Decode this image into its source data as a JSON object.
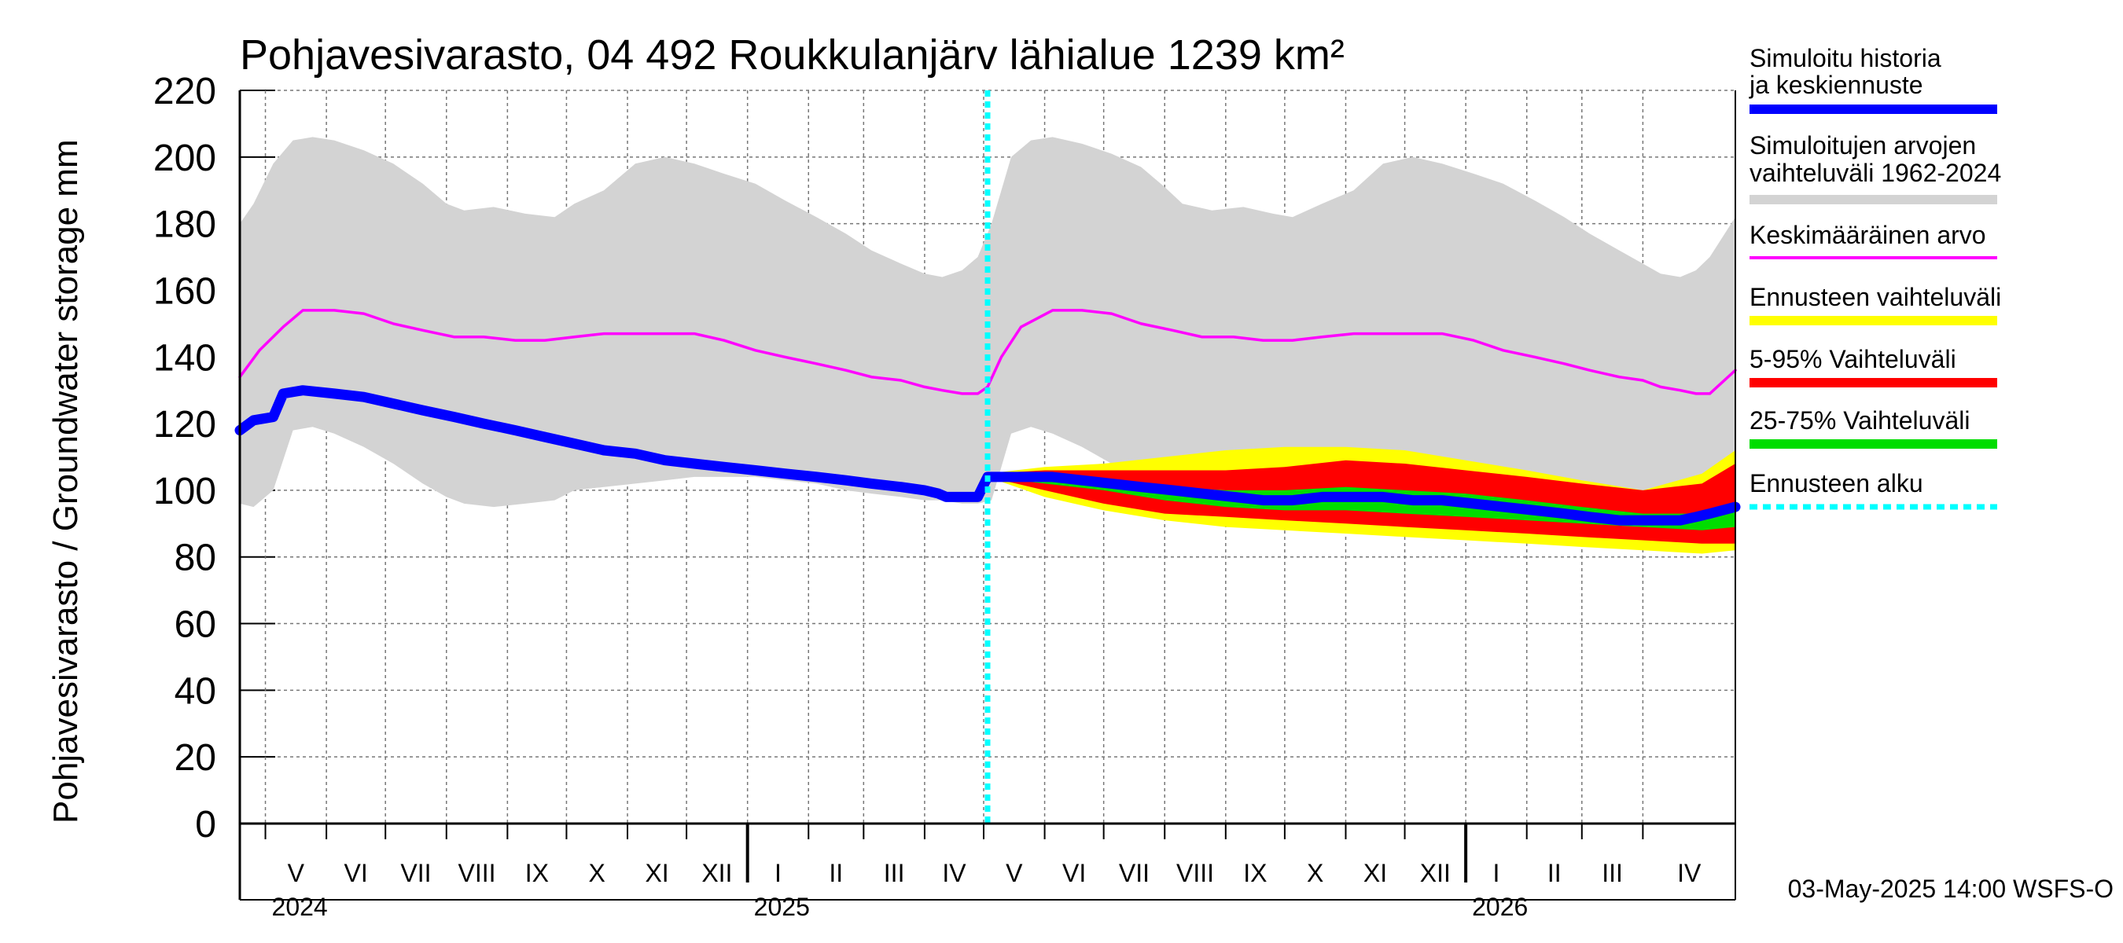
{
  "chart_data": {
    "type": "area",
    "title": "Pohjavesivarasto, 04 492 Roukkulanjärv lähialue 1239 km²",
    "ylabel": "Pohjavesivarasto / Groundwater storage   mm",
    "ylim": [
      0,
      220
    ],
    "yticks": [
      0,
      20,
      40,
      60,
      80,
      100,
      120,
      140,
      160,
      180,
      200,
      220
    ],
    "xlim": [
      "2024-04-18",
      "2026-05-18"
    ],
    "grid": true,
    "months": [
      {
        "label": "V",
        "date": "2024-05-01"
      },
      {
        "label": "VI",
        "date": "2024-06-01"
      },
      {
        "label": "VII",
        "date": "2024-07-01"
      },
      {
        "label": "VIII",
        "date": "2024-08-01"
      },
      {
        "label": "IX",
        "date": "2024-09-01"
      },
      {
        "label": "X",
        "date": "2024-10-01"
      },
      {
        "label": "XI",
        "date": "2024-11-01"
      },
      {
        "label": "XII",
        "date": "2024-12-01"
      },
      {
        "label": "I",
        "date": "2025-01-01"
      },
      {
        "label": "II",
        "date": "2025-02-01"
      },
      {
        "label": "III",
        "date": "2025-03-01"
      },
      {
        "label": "IV",
        "date": "2025-04-01"
      },
      {
        "label": "V",
        "date": "2025-05-01"
      },
      {
        "label": "VI",
        "date": "2025-06-01"
      },
      {
        "label": "VII",
        "date": "2025-07-01"
      },
      {
        "label": "VIII",
        "date": "2025-08-01"
      },
      {
        "label": "IX",
        "date": "2025-09-01"
      },
      {
        "label": "X",
        "date": "2025-10-01"
      },
      {
        "label": "XI",
        "date": "2025-11-01"
      },
      {
        "label": "XII",
        "date": "2025-12-01"
      },
      {
        "label": "I",
        "date": "2026-01-01"
      },
      {
        "label": "II",
        "date": "2026-02-01"
      },
      {
        "label": "III",
        "date": "2026-03-01"
      },
      {
        "label": "IV",
        "date": "2026-04-01"
      }
    ],
    "years": [
      {
        "label": "2024",
        "date": "2024-05-01"
      },
      {
        "label": "2025",
        "date": "2025-01-01"
      },
      {
        "label": "2026",
        "date": "2026-01-01"
      }
    ],
    "forecast_start": "2025-05-03",
    "series": {
      "historical_range": {
        "name": "Simuloitujen arvojen vaihteluväli 1962-2024",
        "color": "#d3d3d3",
        "x": [
          "2024-04-18",
          "2024-04-25",
          "2024-05-05",
          "2024-05-15",
          "2024-05-25",
          "2024-06-05",
          "2024-06-20",
          "2024-07-05",
          "2024-07-20",
          "2024-08-01",
          "2024-08-10",
          "2024-08-25",
          "2024-09-10",
          "2024-09-25",
          "2024-10-05",
          "2024-10-20",
          "2024-11-05",
          "2024-11-20",
          "2024-12-05",
          "2024-12-20",
          "2025-01-05",
          "2025-01-20",
          "2025-02-05",
          "2025-02-20",
          "2025-03-05",
          "2025-03-20",
          "2025-04-01",
          "2025-04-10",
          "2025-04-20",
          "2025-04-28",
          "2025-05-05",
          "2025-05-15",
          "2025-05-25",
          "2025-06-05",
          "2025-06-20",
          "2025-07-05",
          "2025-07-20",
          "2025-08-01",
          "2025-08-10",
          "2025-08-25",
          "2025-09-10",
          "2025-09-25",
          "2025-10-05",
          "2025-10-20",
          "2025-11-05",
          "2025-11-20",
          "2025-12-05",
          "2025-12-20",
          "2026-01-05",
          "2026-01-20",
          "2026-02-05",
          "2026-02-20",
          "2026-03-05",
          "2026-03-20",
          "2026-04-01",
          "2026-04-10",
          "2026-04-20",
          "2026-04-28",
          "2026-05-05",
          "2026-05-18"
        ],
        "upper": [
          180,
          186,
          198,
          205,
          206,
          205,
          202,
          198,
          192,
          186,
          184,
          185,
          183,
          182,
          186,
          190,
          198,
          200,
          198,
          195,
          192,
          187,
          182,
          177,
          172,
          168,
          165,
          164,
          166,
          170,
          180,
          200,
          205,
          206,
          204,
          201,
          197,
          191,
          186,
          184,
          185,
          183,
          182,
          186,
          190,
          198,
          200,
          198,
          195,
          192,
          187,
          182,
          177,
          172,
          168,
          165,
          164,
          166,
          170,
          182
        ],
        "lower": [
          96,
          95,
          100,
          118,
          119,
          117,
          113,
          108,
          102,
          98,
          96,
          95,
          96,
          97,
          100,
          101,
          102,
          103,
          104,
          104,
          104,
          103,
          102,
          100,
          99,
          98,
          97,
          97,
          96,
          96,
          97,
          117,
          119,
          117,
          113,
          108,
          102,
          98,
          96,
          95,
          96,
          97,
          100,
          101,
          102,
          103,
          104,
          104,
          104,
          103,
          102,
          100,
          99,
          98,
          97,
          97,
          96,
          96,
          97,
          98
        ]
      },
      "forecast_yellow": {
        "name": "Ennusteen vaihteluväli",
        "color": "#ffff00",
        "x": [
          "2025-05-03",
          "2025-06-01",
          "2025-07-01",
          "2025-08-01",
          "2025-09-01",
          "2025-10-01",
          "2025-11-01",
          "2025-12-01",
          "2026-01-01",
          "2026-02-01",
          "2026-03-01",
          "2026-04-01",
          "2026-05-01",
          "2026-05-18"
        ],
        "upper": [
          105,
          107,
          108,
          110,
          112,
          113,
          113,
          112,
          109,
          106,
          103,
          100,
          105,
          112
        ],
        "lower": [
          104,
          98,
          94,
          91,
          89,
          88,
          87,
          86,
          85,
          84,
          83,
          82,
          81,
          82
        ]
      },
      "forecast_red": {
        "name": "5-95% Vaihteluväli",
        "color": "#ff0000",
        "x": [
          "2025-05-03",
          "2025-06-01",
          "2025-07-01",
          "2025-08-01",
          "2025-09-01",
          "2025-10-01",
          "2025-11-01",
          "2025-12-01",
          "2026-01-01",
          "2026-02-01",
          "2026-03-01",
          "2026-04-01",
          "2026-05-01",
          "2026-05-18"
        ],
        "upper": [
          105,
          106,
          106,
          106,
          106,
          107,
          109,
          108,
          106,
          104,
          102,
          100,
          102,
          108
        ],
        "lower": [
          104,
          100,
          96,
          93,
          92,
          91,
          90,
          89,
          88,
          87,
          86,
          85,
          84,
          84
        ]
      },
      "forecast_green": {
        "name": "25-75% Vaihteluväli",
        "color": "#00dd00",
        "x": [
          "2025-05-03",
          "2025-06-01",
          "2025-07-01",
          "2025-08-01",
          "2025-09-01",
          "2025-10-01",
          "2025-11-01",
          "2025-12-01",
          "2026-01-01",
          "2026-02-01",
          "2026-03-01",
          "2026-04-01",
          "2026-05-01",
          "2026-05-18"
        ],
        "upper": [
          105,
          104,
          103,
          101,
          100,
          100,
          101,
          100,
          99,
          97,
          95,
          93,
          93,
          96
        ],
        "lower": [
          104,
          102,
          100,
          97,
          95,
          94,
          94,
          93,
          92,
          91,
          90,
          89,
          88,
          89
        ]
      },
      "mean": {
        "name": "Keskimääräinen arvo",
        "color": "#ff00ff",
        "x": [
          "2024-04-18",
          "2024-04-28",
          "2024-05-10",
          "2024-05-20",
          "2024-06-05",
          "2024-06-20",
          "2024-07-05",
          "2024-07-20",
          "2024-08-05",
          "2024-08-20",
          "2024-09-05",
          "2024-09-20",
          "2024-10-05",
          "2024-10-20",
          "2024-11-05",
          "2024-11-20",
          "2024-12-05",
          "2024-12-20",
          "2025-01-05",
          "2025-01-20",
          "2025-02-05",
          "2025-02-20",
          "2025-03-05",
          "2025-03-20",
          "2025-04-01",
          "2025-04-10",
          "2025-04-20",
          "2025-04-28",
          "2025-05-03",
          "2025-05-10",
          "2025-05-20",
          "2025-06-05",
          "2025-06-20",
          "2025-07-05",
          "2025-07-20",
          "2025-08-05",
          "2025-08-20",
          "2025-09-05",
          "2025-09-20",
          "2025-10-05",
          "2025-10-20",
          "2025-11-05",
          "2025-11-20",
          "2025-12-05",
          "2025-12-20",
          "2026-01-05",
          "2026-01-20",
          "2026-02-05",
          "2026-02-20",
          "2026-03-05",
          "2026-03-20",
          "2026-04-01",
          "2026-04-10",
          "2026-04-20",
          "2026-04-28",
          "2026-05-05",
          "2026-05-18"
        ],
        "y": [
          134,
          142,
          149,
          154,
          154,
          153,
          150,
          148,
          146,
          146,
          145,
          145,
          146,
          147,
          147,
          147,
          147,
          145,
          142,
          140,
          138,
          136,
          134,
          133,
          131,
          130,
          129,
          129,
          131,
          140,
          149,
          154,
          154,
          153,
          150,
          148,
          146,
          146,
          145,
          145,
          146,
          147,
          147,
          147,
          147,
          145,
          142,
          140,
          138,
          136,
          134,
          133,
          131,
          130,
          129,
          129,
          136
        ]
      },
      "simulated": {
        "name": "Simuloitu historia ja keskiennuste",
        "color": "#0000ff",
        "x": [
          "2024-04-18",
          "2024-04-25",
          "2024-05-05",
          "2024-05-10",
          "2024-05-20",
          "2024-06-05",
          "2024-06-20",
          "2024-07-05",
          "2024-07-20",
          "2024-08-05",
          "2024-08-20",
          "2024-09-05",
          "2024-09-20",
          "2024-10-05",
          "2024-10-20",
          "2024-11-05",
          "2024-11-20",
          "2024-12-05",
          "2024-12-20",
          "2025-01-05",
          "2025-01-20",
          "2025-02-05",
          "2025-02-20",
          "2025-03-05",
          "2025-03-20",
          "2025-04-01",
          "2025-04-08",
          "2025-04-12",
          "2025-04-20",
          "2025-04-28",
          "2025-05-03",
          "2025-05-20",
          "2025-06-05",
          "2025-06-20",
          "2025-07-05",
          "2025-07-20",
          "2025-08-05",
          "2025-08-20",
          "2025-09-05",
          "2025-09-20",
          "2025-10-05",
          "2025-10-20",
          "2025-11-05",
          "2025-11-20",
          "2025-12-05",
          "2025-12-20",
          "2026-01-05",
          "2026-01-20",
          "2026-02-05",
          "2026-02-20",
          "2026-03-05",
          "2026-03-20",
          "2026-04-01",
          "2026-04-10",
          "2026-04-20",
          "2026-04-28",
          "2026-05-05",
          "2026-05-18"
        ],
        "y": [
          118,
          121,
          122,
          129,
          130,
          129,
          128,
          126,
          124,
          122,
          120,
          118,
          116,
          114,
          112,
          111,
          109,
          108,
          107,
          106,
          105,
          104,
          103,
          102,
          101,
          100,
          99,
          98,
          98,
          98,
          104,
          104,
          104,
          103,
          102,
          101,
          100,
          99,
          98,
          97,
          97,
          98,
          98,
          98,
          97,
          97,
          96,
          95,
          94,
          93,
          92,
          91,
          91,
          91,
          91,
          92,
          93,
          95
        ]
      },
      "forecast_start_line": {
        "name": "Ennusteen alku",
        "color": "#00ffff"
      }
    },
    "legend": [
      {
        "key": "simulated",
        "label": "Simuloitu historia ja keskiennuste",
        "color": "#0000ff",
        "style": "thick"
      },
      {
        "key": "historical_range",
        "label": "Simuloitujen arvojen vaihteluväli 1962-2024",
        "color": "#d3d3d3",
        "style": "thick"
      },
      {
        "key": "mean",
        "label": "Keskimääräinen arvo",
        "color": "#ff00ff",
        "style": "thin"
      },
      {
        "key": "forecast_yellow",
        "label": "Ennusteen vaihteluväli",
        "color": "#ffff00",
        "style": "thick"
      },
      {
        "key": "forecast_red",
        "label": "5-95% Vaihteluväli",
        "color": "#ff0000",
        "style": "thick"
      },
      {
        "key": "forecast_green",
        "label": "25-75% Vaihteluväli",
        "color": "#00dd00",
        "style": "thick"
      },
      {
        "key": "forecast_start_line",
        "label": "Ennusteen alku",
        "color": "#00ffff",
        "style": "dotted"
      }
    ],
    "legend_placement": "right",
    "footer": "03-May-2025 14:00 WSFS-O"
  }
}
